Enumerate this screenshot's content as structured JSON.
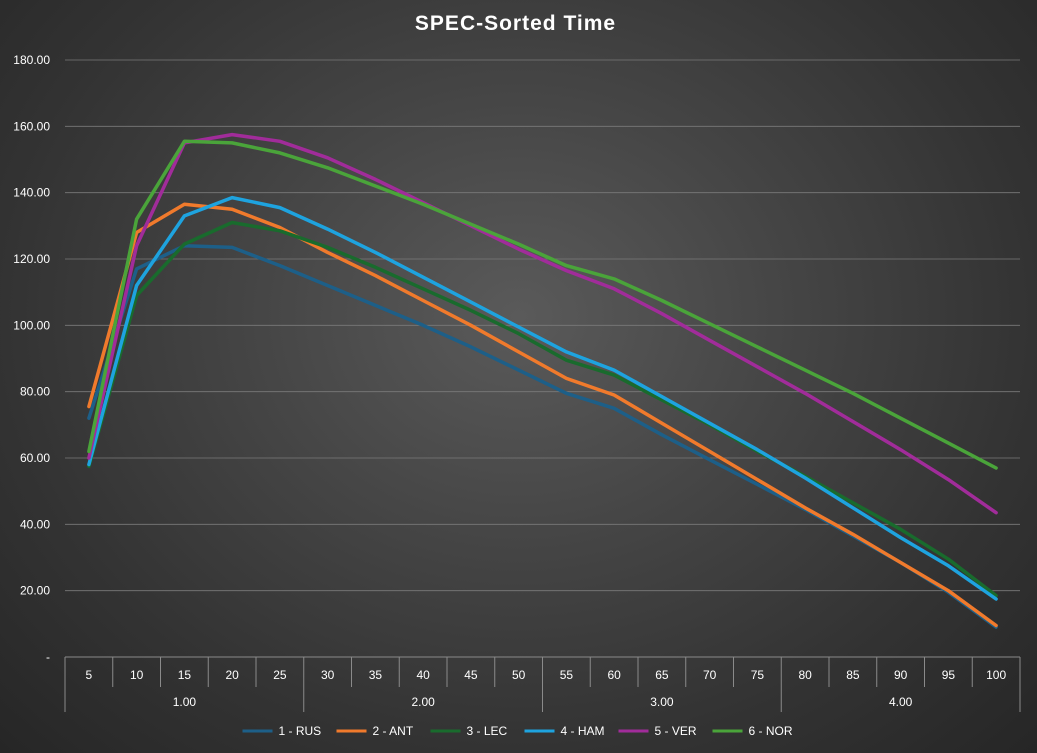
{
  "chart_data": {
    "type": "line",
    "title": "SPEC-Sorted Time",
    "xlabel": "",
    "ylabel": "",
    "ylim": [
      0,
      180
    ],
    "y_ticks": [
      "-",
      "20.00",
      "40.00",
      "60.00",
      "80.00",
      "100.00",
      "120.00",
      "140.00",
      "160.00",
      "180.00"
    ],
    "categories": [
      "5",
      "10",
      "15",
      "20",
      "25",
      "30",
      "35",
      "40",
      "45",
      "50",
      "55",
      "60",
      "65",
      "70",
      "75",
      "80",
      "85",
      "90",
      "95",
      "100"
    ],
    "groups": [
      {
        "label": "1.00",
        "count": 5
      },
      {
        "label": "2.00",
        "count": 5
      },
      {
        "label": "3.00",
        "count": 5
      },
      {
        "label": "4.00",
        "count": 5
      }
    ],
    "legend_position": "bottom",
    "grid": true,
    "series": [
      {
        "name": "1 - RUS",
        "color": "#1d5f88",
        "values": [
          72,
          117,
          124,
          123.5,
          118,
          112,
          106,
          100,
          93.5,
          86.5,
          79.5,
          75,
          67,
          59.5,
          52,
          44.5,
          36.5,
          28.5,
          19.5,
          9
        ]
      },
      {
        "name": "2 - ANT",
        "color": "#f07a2c",
        "values": [
          75.5,
          128,
          136.5,
          135,
          129.5,
          122,
          115,
          107.5,
          100,
          92,
          84,
          79,
          70.5,
          62,
          53.5,
          45,
          37,
          28.5,
          20,
          9.5
        ]
      },
      {
        "name": "3 - LEC",
        "color": "#196b2d",
        "values": [
          57.5,
          109,
          124.5,
          131,
          128.5,
          123.5,
          117.5,
          111,
          104.5,
          97.5,
          89.5,
          85,
          77.5,
          70,
          62,
          54.5,
          46.5,
          38.5,
          29.5,
          18.5
        ]
      },
      {
        "name": "4 - HAM",
        "color": "#1ea3df",
        "values": [
          58,
          112,
          133,
          138.5,
          135.5,
          129,
          122,
          114.5,
          107,
          99.5,
          92,
          86.5,
          78.5,
          70.5,
          62.5,
          54,
          45,
          36,
          27.5,
          17.5
        ]
      },
      {
        "name": "5 - VER",
        "color": "#a12c9a",
        "values": [
          60,
          124,
          155,
          157.5,
          155.5,
          150.5,
          144,
          137,
          130,
          123,
          116.5,
          111,
          103.5,
          95.5,
          87.5,
          79.5,
          71,
          62.5,
          53.5,
          43.5
        ]
      },
      {
        "name": "6 - NOR",
        "color": "#4aa43a",
        "values": [
          62,
          132,
          155.5,
          155,
          152,
          147.5,
          142,
          136.5,
          130.5,
          124.5,
          118,
          114,
          107.5,
          100.5,
          93.5,
          86.5,
          79.5,
          72,
          64.5,
          57
        ]
      }
    ]
  }
}
